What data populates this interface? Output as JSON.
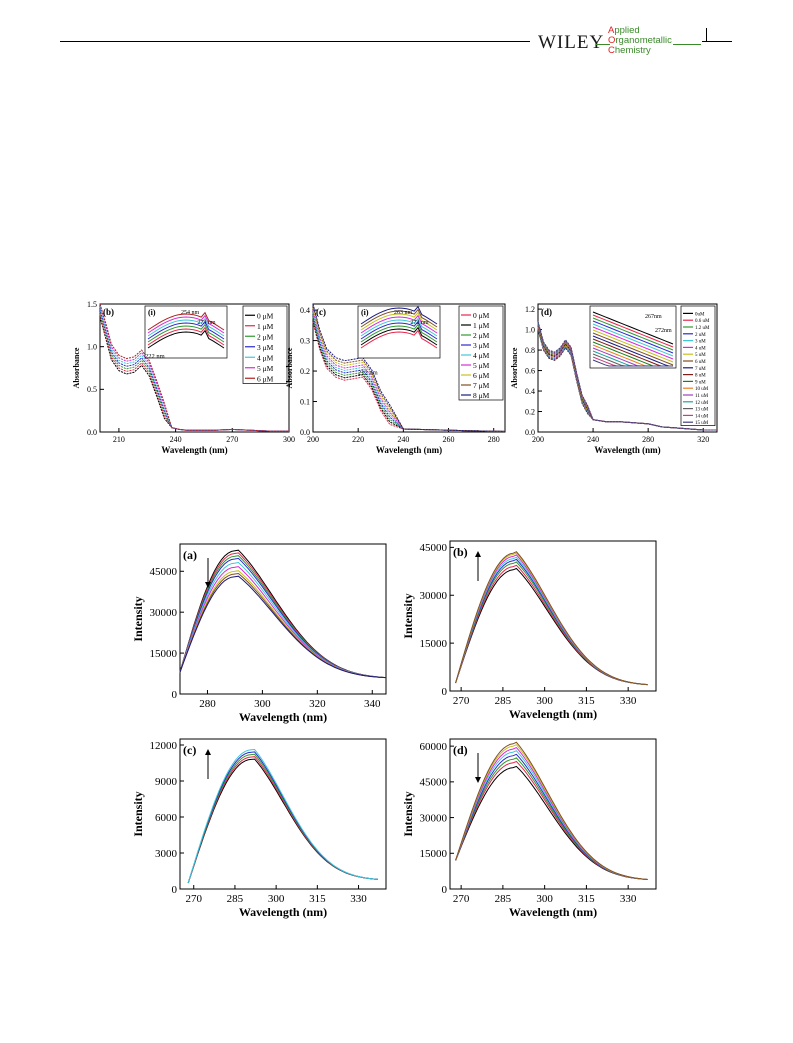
{
  "header": {
    "publisher": "WILEY",
    "journal_lines": [
      "Applied",
      "Organometallic",
      "Chemistry"
    ]
  },
  "chart_data": [
    {
      "id": "uv-b",
      "panel": "(b)",
      "type": "line",
      "xlabel": "Wavelength (nm)",
      "ylabel": "Absorbance",
      "xlim": [
        200,
        300
      ],
      "ylim": [
        0,
        1.5
      ],
      "xticks": [
        210,
        240,
        270,
        300
      ],
      "yticks": [
        0.0,
        0.5,
        1.0,
        1.5
      ],
      "legend": [
        "0 μM",
        "1 μM",
        "2 μM",
        "3 μM",
        "4 μM",
        "5 μM",
        "6 μM"
      ],
      "colors": [
        "#000000",
        "#e8254b",
        "#2e9a2e",
        "#2a2ad0",
        "#3ec8d8",
        "#d82ad8",
        "#b02020"
      ],
      "annotations": [
        "222 nm"
      ],
      "x": [
        200,
        203,
        206,
        210,
        214,
        218,
        222,
        226,
        230,
        234,
        238,
        242,
        246,
        250,
        260,
        270,
        280,
        290,
        300
      ],
      "series_base": [
        1.35,
        1.1,
        0.85,
        0.72,
        0.68,
        0.7,
        0.78,
        0.66,
        0.42,
        0.16,
        0.05,
        0.03,
        0.02,
        0.02,
        0.02,
        0.03,
        0.02,
        0.01,
        0.01
      ],
      "series_step": 0.03,
      "inset": {
        "label": "(i)",
        "annotations": [
          "254 nm",
          "273 nm"
        ]
      }
    },
    {
      "id": "uv-c",
      "panel": "(c)",
      "type": "line",
      "xlabel": "Wavelength (nm)",
      "ylabel": "Absorbance",
      "xlim": [
        200,
        285
      ],
      "ylim": [
        0,
        0.42
      ],
      "xticks": [
        200,
        220,
        240,
        260,
        280
      ],
      "yticks": [
        0.0,
        0.1,
        0.2,
        0.3,
        0.4
      ],
      "legend": [
        "0 μM",
        "1 μM",
        "2 μM",
        "3 μM",
        "4 μM",
        "5 μM",
        "6 μM",
        "7 μM",
        "8 μM"
      ],
      "colors": [
        "#e8254b",
        "#000000",
        "#2e9a2e",
        "#2a2ad0",
        "#3ec8d8",
        "#d82ad8",
        "#c8c020",
        "#805020",
        "#1a1a80"
      ],
      "annotations": [
        "212 nm"
      ],
      "x": [
        200,
        203,
        206,
        210,
        214,
        218,
        222,
        226,
        230,
        234,
        240,
        250,
        260,
        270,
        285
      ],
      "series_base": [
        0.36,
        0.27,
        0.21,
        0.18,
        0.17,
        0.175,
        0.18,
        0.14,
        0.07,
        0.025,
        0.01,
        0.008,
        0.006,
        0.004,
        0.002
      ],
      "series_step": 0.008,
      "inset": {
        "label": "(i)",
        "annotations": [
          "263 nm",
          "272 nm"
        ]
      }
    },
    {
      "id": "uv-d",
      "panel": "(d)",
      "type": "line",
      "xlabel": "Wavelength (nm)",
      "ylabel": "Absorbance",
      "xlim": [
        200,
        330
      ],
      "ylim": [
        0,
        1.25
      ],
      "xticks": [
        200,
        240,
        280,
        320
      ],
      "yticks": [
        0.0,
        0.2,
        0.4,
        0.6,
        0.8,
        1.0,
        1.2
      ],
      "legend": [
        "0uM",
        "0.6 uM",
        "1.2 uM",
        "2 uM",
        "3 uM",
        "4 uM",
        "5 uM",
        "6 uM",
        "7 uM",
        "8 uM",
        "9 uM",
        "10 uM",
        "11 uM",
        "12 uM",
        "13 uM",
        "14 uM",
        "15 uM"
      ],
      "colors": [
        "#000000",
        "#e8254b",
        "#2e9a2e",
        "#2a2ad0",
        "#3ec8d8",
        "#d82ad8",
        "#c8c020",
        "#805020",
        "#1a1a80",
        "#801a1a",
        "#1a801a",
        "#e88020",
        "#a040c0",
        "#20a0a0",
        "#606060",
        "#c04080",
        "#404080"
      ],
      "annotations": [
        "267nm",
        "272nm"
      ],
      "x": [
        200,
        204,
        208,
        212,
        216,
        220,
        224,
        228,
        232,
        236,
        240,
        250,
        260,
        270,
        280,
        290,
        300,
        320,
        330
      ],
      "series_base": [
        1.0,
        0.8,
        0.72,
        0.7,
        0.74,
        0.82,
        0.75,
        0.5,
        0.28,
        0.18,
        0.12,
        0.1,
        0.1,
        0.09,
        0.08,
        0.05,
        0.04,
        0.02,
        0.02
      ],
      "series_step": 0.005,
      "inset": {
        "label": "",
        "annotations": []
      }
    },
    {
      "id": "fl-a",
      "panel": "(a)",
      "type": "line",
      "xlabel": "Wavelength (nm)",
      "ylabel": "Intensity",
      "xlim": [
        270,
        345
      ],
      "ylim": [
        0,
        55000
      ],
      "xticks": [
        280,
        300,
        320,
        340
      ],
      "yticks": [
        0,
        15000,
        30000,
        45000
      ],
      "peak_x": 290,
      "start_x": 270,
      "end_x": 345,
      "peaks": [
        52500,
        51500,
        50500,
        49500,
        48000,
        46500,
        45000,
        44000,
        43000
      ],
      "start_y": 8000,
      "end_y": 6000,
      "arrow": "down"
    },
    {
      "id": "fl-b",
      "panel": "(b)",
      "type": "line",
      "xlabel": "Wavelength (nm)",
      "ylabel": "Intensity",
      "xlim": [
        266,
        340
      ],
      "ylim": [
        0,
        47000
      ],
      "xticks": [
        270,
        285,
        300,
        315,
        330
      ],
      "yticks": [
        0,
        15000,
        30000,
        45000
      ],
      "peak_x": 289,
      "start_x": 268,
      "end_x": 337,
      "peaks": [
        38000,
        39000,
        40000,
        40800,
        41500,
        42200,
        42800,
        43200
      ],
      "start_y": 2500,
      "end_y": 2000,
      "arrow": "up"
    },
    {
      "id": "fl-c",
      "panel": "(c)",
      "type": "line",
      "xlabel": "Wavelength (nm)",
      "ylabel": "Intensity",
      "xlim": [
        265,
        340
      ],
      "ylim": [
        0,
        12500
      ],
      "xticks": [
        270,
        285,
        300,
        315,
        330
      ],
      "yticks": [
        0,
        3000,
        6000,
        9000,
        12000
      ],
      "peak_x": 291,
      "start_x": 268,
      "end_x": 337,
      "peaks": [
        10800,
        11000,
        11200,
        11400,
        11600
      ],
      "start_y": 500,
      "end_y": 800,
      "arrow": "up"
    },
    {
      "id": "fl-d",
      "panel": "(d)",
      "type": "line",
      "xlabel": "Wavelength (nm)",
      "ylabel": "Intensity",
      "xlim": [
        266,
        340
      ],
      "ylim": [
        0,
        63000
      ],
      "xticks": [
        270,
        285,
        300,
        315,
        330
      ],
      "yticks": [
        0,
        15000,
        30000,
        45000,
        60000
      ],
      "peak_x": 289,
      "start_x": 268,
      "end_x": 337,
      "peaks": [
        51000,
        53000,
        54500,
        56000,
        57500,
        58800,
        60000,
        61000
      ],
      "start_y": 12000,
      "end_y": 4000,
      "arrow": "down"
    }
  ]
}
